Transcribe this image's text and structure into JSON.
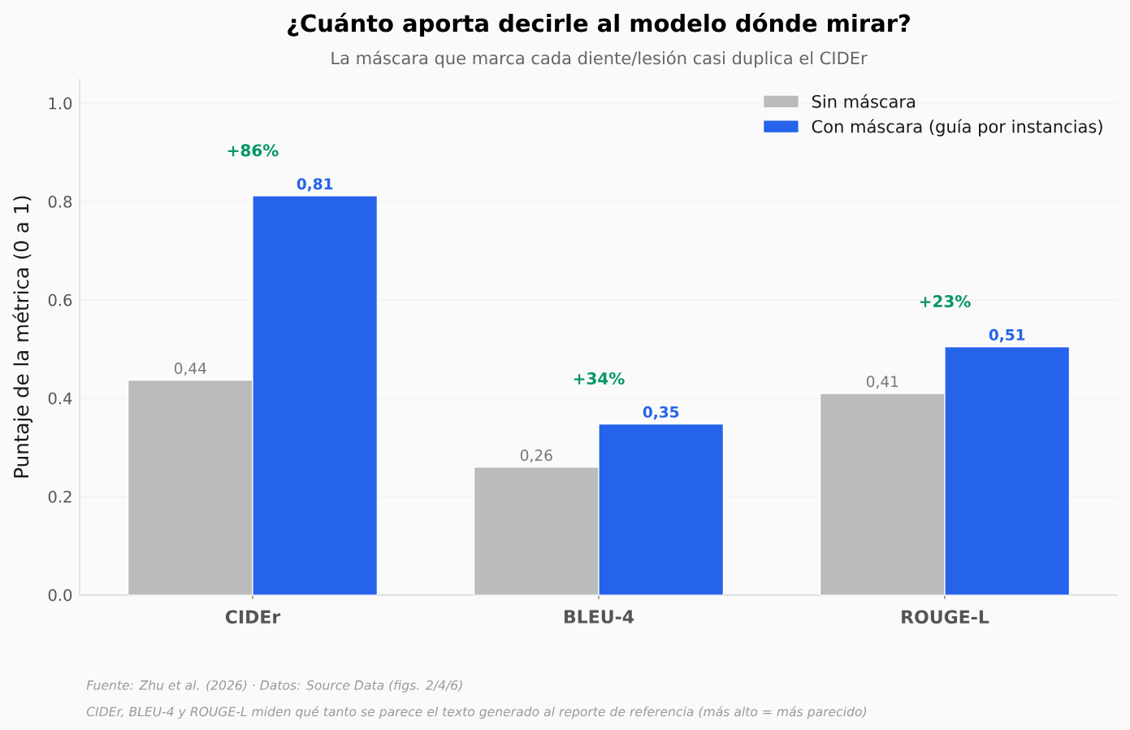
{
  "chart_data": {
    "type": "bar",
    "title": "¿Cuánto aporta decirle al modelo dónde mirar?",
    "subtitle": "La máscara que marca cada diente/lesión casi duplica el CIDEr",
    "ylabel": "Puntaje de la métrica (0 a 1)",
    "categories": [
      "CIDEr",
      "BLEU-4",
      "ROUGE-L"
    ],
    "series": [
      {
        "name": "Sin máscara",
        "color": "#bbbbbb",
        "values": [
          0.437,
          0.26,
          0.41
        ],
        "value_labels": [
          "0,44",
          "0,26",
          "0,41"
        ]
      },
      {
        "name": "Con máscara (guía por instancias)",
        "color": "#2563eb",
        "values": [
          0.812,
          0.348,
          0.505
        ],
        "value_labels": [
          "0,81",
          "0,35",
          "0,51"
        ]
      }
    ],
    "ylim": [
      0,
      1.05
    ],
    "yticks": [
      {
        "value": 0,
        "label": "0.0"
      },
      0.2,
      0.4,
      0.6,
      0.8,
      {
        "value": 1,
        "label": "1.0"
      }
    ],
    "grid": "y",
    "legend": "top right",
    "annotations": [
      "+86%",
      "+34%",
      "+23%",
      "Fuente: Zhu et al. (2026) · Datos: Source Data (figs. 2/4/6)",
      "CIDEr, BLEU-4 y ROUGE-L miden qué tanto se parece el texto generado al reporte de referencia (más alto = más parecido)"
    ]
  }
}
